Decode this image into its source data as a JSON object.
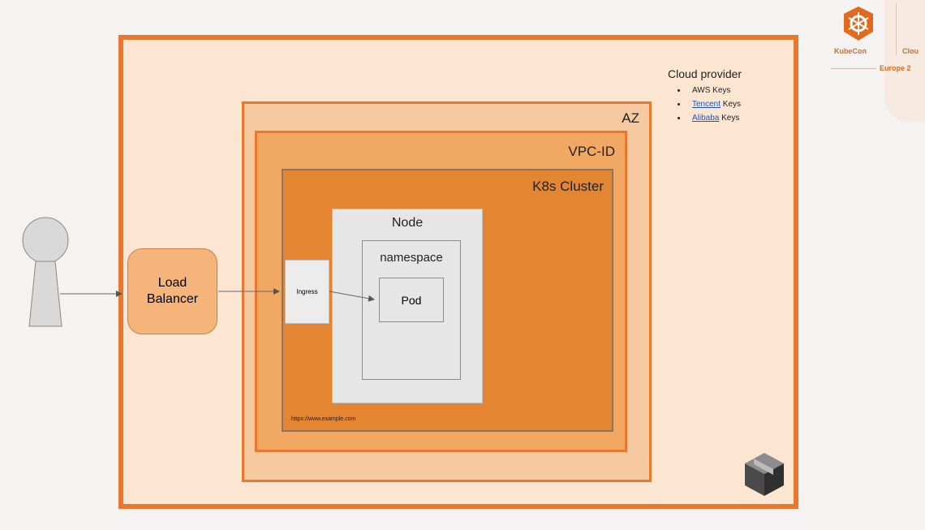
{
  "diagram": {
    "cloud_provider": {
      "title": "Cloud provider",
      "keys": [
        {
          "link": "",
          "text": "AWS Keys"
        },
        {
          "link": "Tencent",
          "text": " Keys"
        },
        {
          "link": "Alibaba",
          "text": " Keys"
        }
      ]
    },
    "az_label": "AZ",
    "vpc_label": "VPC-ID",
    "k8s_label": "K8s Cluster",
    "node_label": "Node",
    "namespace_label": "namespace",
    "pod_label": "Pod",
    "ingress_label": "Ingress",
    "load_balancer_label": [
      "Load",
      "Balancer"
    ],
    "url_text": "https://www.example.com"
  },
  "branding": {
    "kubecon": "KubeCon",
    "cloud": "Clou",
    "europe": "Europe 2"
  },
  "colors": {
    "accent_orange": "#e9782e",
    "cluster_orange": "#e48631",
    "link_blue": "#1a55c8"
  },
  "icons": [
    "user-icon",
    "package-box-icon",
    "kubecon-helm-icon"
  ]
}
